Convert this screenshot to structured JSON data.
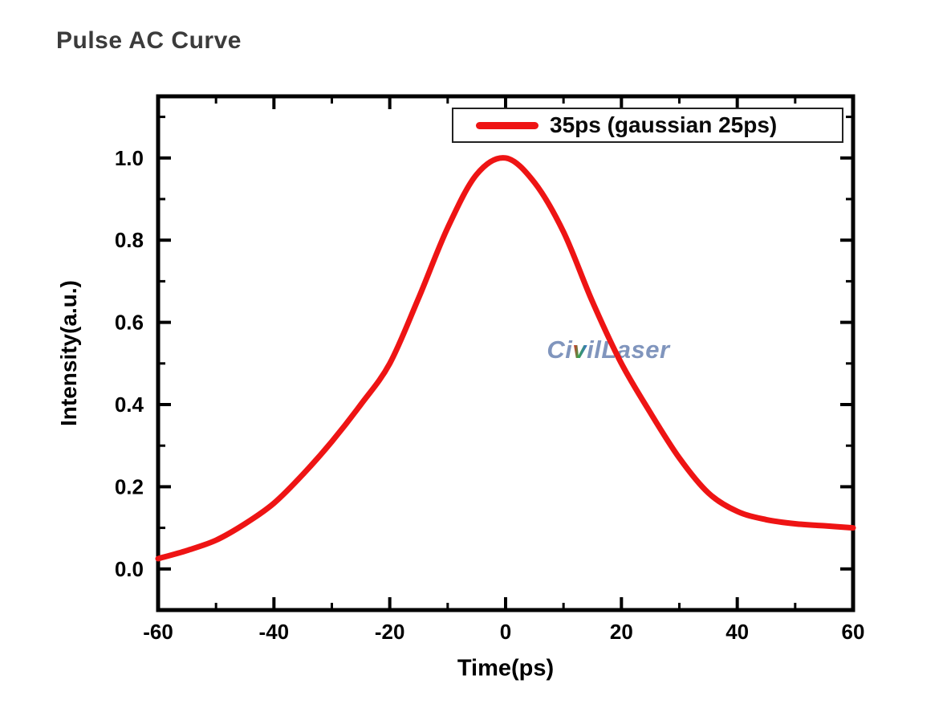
{
  "page": {
    "title": "Pulse AC Curve",
    "background_color": "#ffffff",
    "title_color": "#3b3b3b"
  },
  "watermark": {
    "full_text": "CivilLaser",
    "parts": {
      "pre": "Ci",
      "v": "v",
      "post": "ilLaser"
    },
    "color": "#8095bd"
  },
  "chart_data": {
    "type": "line",
    "title": "Pulse AC Curve",
    "xlabel": "Time(ps)",
    "ylabel": "Intensity(a.u.)",
    "xlim": [
      -60,
      60
    ],
    "ylim": [
      -0.1,
      1.15
    ],
    "grid": false,
    "axes_color": "#000000",
    "tick_style": "inward, all four sides, bold labels",
    "x_major_ticks": [
      -60,
      -40,
      -20,
      0,
      20,
      40,
      60
    ],
    "x_minor_ticks": [
      -50,
      -30,
      -10,
      10,
      30,
      50
    ],
    "x_tick_labels": [
      "-60",
      "-40",
      "-20",
      "0",
      "20",
      "40",
      "60"
    ],
    "y_major_ticks": [
      0.0,
      0.2,
      0.4,
      0.6,
      0.8,
      1.0
    ],
    "y_minor_ticks": [
      0.1,
      0.3,
      0.5,
      0.7,
      0.9,
      1.1
    ],
    "y_tick_labels": [
      "0.0",
      "0.2",
      "0.4",
      "0.6",
      "0.8",
      "1.0"
    ],
    "legend": {
      "position": "top-right",
      "border": true,
      "entries": [
        {
          "label": "35ps (gaussian 25ps)",
          "color": "#ee1414",
          "marker": "thick-line"
        }
      ]
    },
    "series": [
      {
        "name": "35ps (gaussian 25ps)",
        "color": "#ee1414",
        "line_width": 7,
        "x": [
          -60,
          -55,
          -50,
          -45,
          -40,
          -35,
          -30,
          -25,
          -20,
          -15,
          -10,
          -5,
          0,
          5,
          10,
          15,
          20,
          25,
          30,
          35,
          40,
          45,
          50,
          55,
          60
        ],
        "y": [
          0.025,
          0.045,
          0.07,
          0.11,
          0.16,
          0.23,
          0.31,
          0.4,
          0.5,
          0.66,
          0.83,
          0.96,
          1.0,
          0.94,
          0.82,
          0.65,
          0.5,
          0.38,
          0.27,
          0.185,
          0.14,
          0.12,
          0.11,
          0.105,
          0.1
        ]
      }
    ],
    "annotations": [
      {
        "text": "CivilLaser",
        "kind": "watermark",
        "x": 18,
        "y": 0.55
      }
    ],
    "peak": {
      "x": 0,
      "y": 1.0
    }
  }
}
